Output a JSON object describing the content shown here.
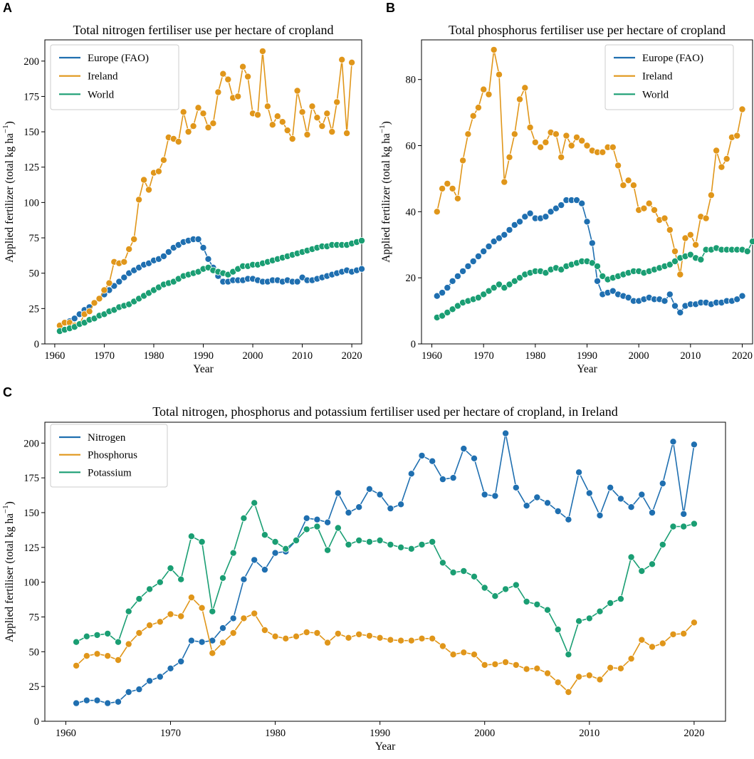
{
  "colors": {
    "blue": "#1f6fb0",
    "orange": "#e0961a",
    "green": "#1a9e73"
  },
  "chart_data": [
    {
      "id": "A",
      "type": "line",
      "panel_label": "A",
      "title": "Total nitrogen fertiliser use per hectare of cropland",
      "xlabel": "Year",
      "ylabel_main": "Applied fertilizer (total kg ha",
      "ylabel_sup": "−1",
      "ylabel_end": ")",
      "xlim": [
        1958,
        2022
      ],
      "ylim": [
        0,
        215
      ],
      "xticks": [
        1960,
        1970,
        1980,
        1990,
        2000,
        2010,
        2020
      ],
      "yticks": [
        0,
        25,
        50,
        75,
        100,
        125,
        150,
        175,
        200
      ],
      "legend": "top-left",
      "x_start": 1961,
      "series": [
        {
          "name": "Europe (FAO)",
          "color": "blue",
          "values": [
            13,
            15,
            16,
            18,
            21,
            24,
            26,
            29,
            32,
            35,
            38,
            41,
            44,
            47,
            50,
            52,
            54,
            56,
            57,
            59,
            60,
            62,
            65,
            68,
            70,
            72,
            73,
            74,
            74,
            68,
            60,
            54,
            48,
            44,
            44,
            45,
            45,
            45,
            46,
            46,
            45,
            44,
            44,
            45,
            45,
            44,
            45,
            44,
            44,
            47,
            45,
            45,
            46,
            47,
            48,
            49,
            50,
            51,
            52,
            51,
            52,
            53
          ]
        },
        {
          "name": "Ireland",
          "color": "orange",
          "values": [
            13,
            15,
            15,
            13,
            14,
            21,
            23,
            29,
            32,
            38,
            43,
            58,
            57,
            58,
            67,
            74,
            102,
            116,
            109,
            121,
            122,
            130,
            146,
            145,
            143,
            164,
            150,
            154,
            167,
            163,
            153,
            156,
            178,
            191,
            187,
            174,
            175,
            196,
            189,
            163,
            162,
            207,
            168,
            155,
            161,
            157,
            151,
            145,
            179,
            164,
            148,
            168,
            160,
            154,
            163,
            150,
            171,
            201,
            149,
            199
          ]
        },
        {
          "name": "World",
          "color": "green",
          "values": [
            9,
            10,
            11,
            12,
            14,
            15,
            17,
            18,
            20,
            21,
            23,
            24,
            26,
            27,
            28,
            30,
            32,
            34,
            36,
            38,
            40,
            42,
            43,
            44,
            46,
            48,
            49,
            50,
            51,
            53,
            54,
            52,
            51,
            50,
            49,
            51,
            53,
            55,
            55,
            56,
            56,
            57,
            58,
            59,
            60,
            61,
            62,
            63,
            64,
            65,
            66,
            67,
            68,
            69,
            69,
            70,
            70,
            70,
            70,
            71,
            72,
            73
          ]
        }
      ]
    },
    {
      "id": "B",
      "type": "line",
      "panel_label": "B",
      "title": "Total phosphorus fertiliser use per hectare of cropland",
      "xlabel": "Year",
      "ylabel_main": "Applied fertilizer (total kg ha",
      "ylabel_sup": "−1",
      "ylabel_end": ")",
      "xlim": [
        1958,
        2022
      ],
      "ylim": [
        0,
        92
      ],
      "xticks": [
        1960,
        1970,
        1980,
        1990,
        2000,
        2010,
        2020
      ],
      "yticks": [
        0,
        20,
        40,
        60,
        80
      ],
      "legend": "top-right",
      "x_start": 1961,
      "series": [
        {
          "name": "Europe (FAO)",
          "color": "blue",
          "values": [
            14.5,
            15.5,
            17,
            19,
            20.5,
            22,
            23.5,
            25,
            26.5,
            28,
            29.5,
            31,
            32,
            33,
            34.5,
            36,
            37,
            38.5,
            39.5,
            38,
            38,
            38.5,
            40,
            41,
            42,
            43.5,
            43.5,
            43.5,
            42.5,
            37,
            30.5,
            19,
            15,
            15.5,
            16,
            15,
            14.5,
            14,
            13,
            13,
            13.5,
            14,
            13.5,
            13.5,
            13,
            15,
            11.5,
            9.5,
            11.5,
            12,
            12,
            12.5,
            12.5,
            12,
            12.5,
            12.5,
            13,
            13,
            13.5,
            14.5
          ]
        },
        {
          "name": "Ireland",
          "color": "orange",
          "values": [
            40,
            47,
            48.5,
            47,
            44,
            55.5,
            63.5,
            69,
            71.5,
            77,
            75.5,
            89,
            81.5,
            49,
            56.5,
            63.5,
            74,
            77.5,
            65.5,
            61,
            59.5,
            61,
            64,
            63.5,
            56.5,
            63,
            60,
            62.5,
            61.5,
            60,
            58.5,
            58,
            58,
            59.5,
            59.5,
            54,
            48,
            49.5,
            48,
            40.5,
            41,
            42.5,
            40.5,
            37.5,
            38,
            34.5,
            28,
            21,
            32,
            33,
            30,
            38.5,
            38,
            45,
            58.5,
            53.5,
            56,
            62.5,
            63,
            71
          ]
        },
        {
          "name": "World",
          "color": "green",
          "values": [
            8,
            8.5,
            9.5,
            10.5,
            11.5,
            12.5,
            13,
            13.5,
            14,
            15,
            16,
            17,
            18,
            17,
            18,
            19,
            20,
            21,
            21.5,
            22,
            22,
            21.5,
            22.5,
            23,
            22.5,
            23.5,
            24,
            24.5,
            25,
            25,
            24.5,
            23.5,
            20.5,
            19.5,
            20,
            20.5,
            21,
            21.5,
            22,
            22,
            21.5,
            22,
            22.5,
            23,
            23.5,
            24,
            25,
            26,
            26.5,
            27,
            26,
            25.5,
            28.5,
            28.5,
            29,
            28.5,
            28.5,
            28.5,
            28.5,
            28.5,
            28,
            31
          ]
        }
      ]
    },
    {
      "id": "C",
      "type": "line",
      "panel_label": "C",
      "title": "Total nitrogen, phosphorus and potassium fertiliser used per hectare of cropland, in Ireland",
      "xlabel": "Year",
      "ylabel_main": "Applied fertiliser (total kg ha",
      "ylabel_sup": "−1",
      "ylabel_end": ")",
      "xlim": [
        1958,
        2023
      ],
      "ylim": [
        0,
        215
      ],
      "xticks": [
        1960,
        1970,
        1980,
        1990,
        2000,
        2010,
        2020
      ],
      "yticks": [
        0,
        25,
        50,
        75,
        100,
        125,
        150,
        175,
        200
      ],
      "legend": "top-left",
      "x_start": 1961,
      "series": [
        {
          "name": "Nitrogen",
          "color": "blue",
          "values": [
            13,
            15,
            15,
            13,
            14,
            21,
            23,
            29,
            32,
            38,
            43,
            58,
            57,
            58,
            67,
            74,
            102,
            116,
            109,
            121,
            122,
            130,
            146,
            145,
            143,
            164,
            150,
            154,
            167,
            163,
            153,
            156,
            178,
            191,
            187,
            174,
            175,
            196,
            189,
            163,
            162,
            207,
            168,
            155,
            161,
            157,
            151,
            145,
            179,
            164,
            148,
            168,
            160,
            154,
            163,
            150,
            171,
            201,
            149,
            199
          ]
        },
        {
          "name": "Phosphorus",
          "color": "orange",
          "values": [
            40,
            47,
            48.5,
            47,
            44,
            55.5,
            63.5,
            69,
            71.5,
            77,
            75.5,
            89,
            81.5,
            49,
            56.5,
            63.5,
            74,
            77.5,
            65.5,
            61,
            59.5,
            61,
            64,
            63.5,
            56.5,
            63,
            60,
            62.5,
            61.5,
            60,
            58.5,
            58,
            58,
            59.5,
            59.5,
            54,
            48,
            49.5,
            48,
            40.5,
            41,
            42.5,
            40.5,
            37.5,
            38,
            34.5,
            28,
            21,
            32,
            33,
            30,
            38.5,
            38,
            45,
            58.5,
            53.5,
            56,
            62.5,
            63,
            71
          ]
        },
        {
          "name": "Potassium",
          "color": "green",
          "values": [
            57,
            61,
            62,
            63,
            57,
            79,
            88,
            95,
            100,
            110,
            102,
            133,
            129,
            79,
            103,
            121,
            146,
            157,
            134,
            129,
            124,
            130,
            138,
            140,
            123,
            139,
            127,
            130,
            129,
            130,
            127,
            125,
            124,
            127,
            129,
            114,
            107,
            108,
            104,
            96,
            90,
            95,
            98,
            86,
            84,
            80,
            66,
            48,
            72,
            74,
            79,
            85,
            88,
            118,
            108,
            113,
            127,
            140,
            140,
            142
          ]
        }
      ]
    }
  ]
}
